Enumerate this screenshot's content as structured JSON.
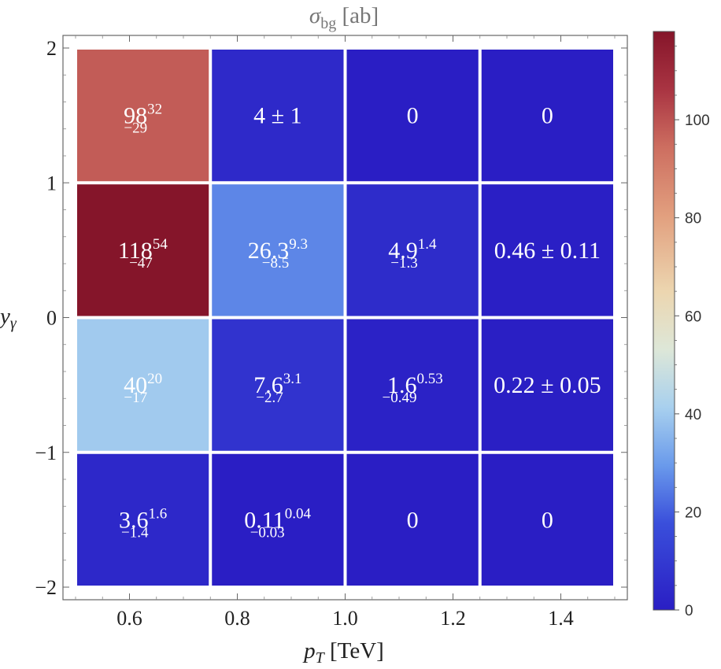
{
  "chart_data": {
    "type": "heatmap",
    "title": {
      "main": "σ",
      "sub": "bg",
      "unit": " [ab]"
    },
    "xlabel": {
      "main": "p",
      "sub": "T",
      "unit": " [TeV]"
    },
    "ylabel": {
      "main": "y",
      "sub": "γ"
    },
    "x_range": [
      0.5,
      1.5
    ],
    "y_range": [
      -2,
      2
    ],
    "x_ticks": [
      "0.6",
      "0.8",
      "1.0",
      "1.2",
      "1.4"
    ],
    "x_tick_values": [
      0.6,
      0.8,
      1.0,
      1.2,
      1.4
    ],
    "y_ticks": [
      "2",
      "1",
      "0",
      "−1",
      "−2"
    ],
    "y_tick_values": [
      2,
      1,
      0,
      -1,
      -2
    ],
    "colorbar": {
      "range": [
        0,
        118
      ],
      "ticks": [
        "0",
        "20",
        "40",
        "60",
        "80",
        "100"
      ],
      "tick_values": [
        0,
        20,
        40,
        60,
        80,
        100
      ]
    },
    "cells": [
      {
        "x": [
          0.5,
          0.75
        ],
        "y": [
          1,
          2
        ],
        "value": 98,
        "label": {
          "base": "98",
          "sup": "32",
          "sub": "−29"
        }
      },
      {
        "x": [
          0.75,
          1.0
        ],
        "y": [
          1,
          2
        ],
        "value": 4,
        "label": {
          "text": "4 ± 1"
        }
      },
      {
        "x": [
          1.0,
          1.25
        ],
        "y": [
          1,
          2
        ],
        "value": 0,
        "label": {
          "text": "0"
        }
      },
      {
        "x": [
          1.25,
          1.5
        ],
        "y": [
          1,
          2
        ],
        "value": 0,
        "label": {
          "text": "0"
        }
      },
      {
        "x": [
          0.5,
          0.75
        ],
        "y": [
          0,
          1
        ],
        "value": 118,
        "label": {
          "base": "118",
          "sup": "54",
          "sub": "−47"
        }
      },
      {
        "x": [
          0.75,
          1.0
        ],
        "y": [
          0,
          1
        ],
        "value": 26.3,
        "label": {
          "base": "26.3",
          "sup": "9.3",
          "sub": "−8.5"
        }
      },
      {
        "x": [
          1.0,
          1.25
        ],
        "y": [
          0,
          1
        ],
        "value": 4.9,
        "label": {
          "base": "4.9",
          "sup": "1.4",
          "sub": "−1.3"
        }
      },
      {
        "x": [
          1.25,
          1.5
        ],
        "y": [
          0,
          1
        ],
        "value": 0.46,
        "label": {
          "text": "0.46 ± 0.11"
        }
      },
      {
        "x": [
          0.5,
          0.75
        ],
        "y": [
          -1,
          0
        ],
        "value": 40,
        "label": {
          "base": "40",
          "sup": "20",
          "sub": "−17"
        }
      },
      {
        "x": [
          0.75,
          1.0
        ],
        "y": [
          -1,
          0
        ],
        "value": 7.6,
        "label": {
          "base": "7.6",
          "sup": "3.1",
          "sub": "−2.7"
        }
      },
      {
        "x": [
          1.0,
          1.25
        ],
        "y": [
          -1,
          0
        ],
        "value": 1.6,
        "label": {
          "base": "1.6",
          "sup": "0.53",
          "sub": "−0.49"
        }
      },
      {
        "x": [
          1.25,
          1.5
        ],
        "y": [
          -1,
          0
        ],
        "value": 0.22,
        "label": {
          "text": "0.22 ± 0.05"
        }
      },
      {
        "x": [
          0.5,
          0.75
        ],
        "y": [
          -2,
          -1
        ],
        "value": 3.6,
        "label": {
          "base": "3.6",
          "sup": "1.6",
          "sub": "−1.4"
        }
      },
      {
        "x": [
          0.75,
          1.0
        ],
        "y": [
          -2,
          -1
        ],
        "value": 0.11,
        "label": {
          "base": "0.11",
          "sup": "0.04",
          "sub": "−0.03"
        }
      },
      {
        "x": [
          1.0,
          1.25
        ],
        "y": [
          -2,
          -1
        ],
        "value": 0,
        "label": {
          "text": "0"
        }
      },
      {
        "x": [
          1.25,
          1.5
        ],
        "y": [
          -2,
          -1
        ],
        "value": 0,
        "label": {
          "text": "0"
        }
      }
    ]
  }
}
